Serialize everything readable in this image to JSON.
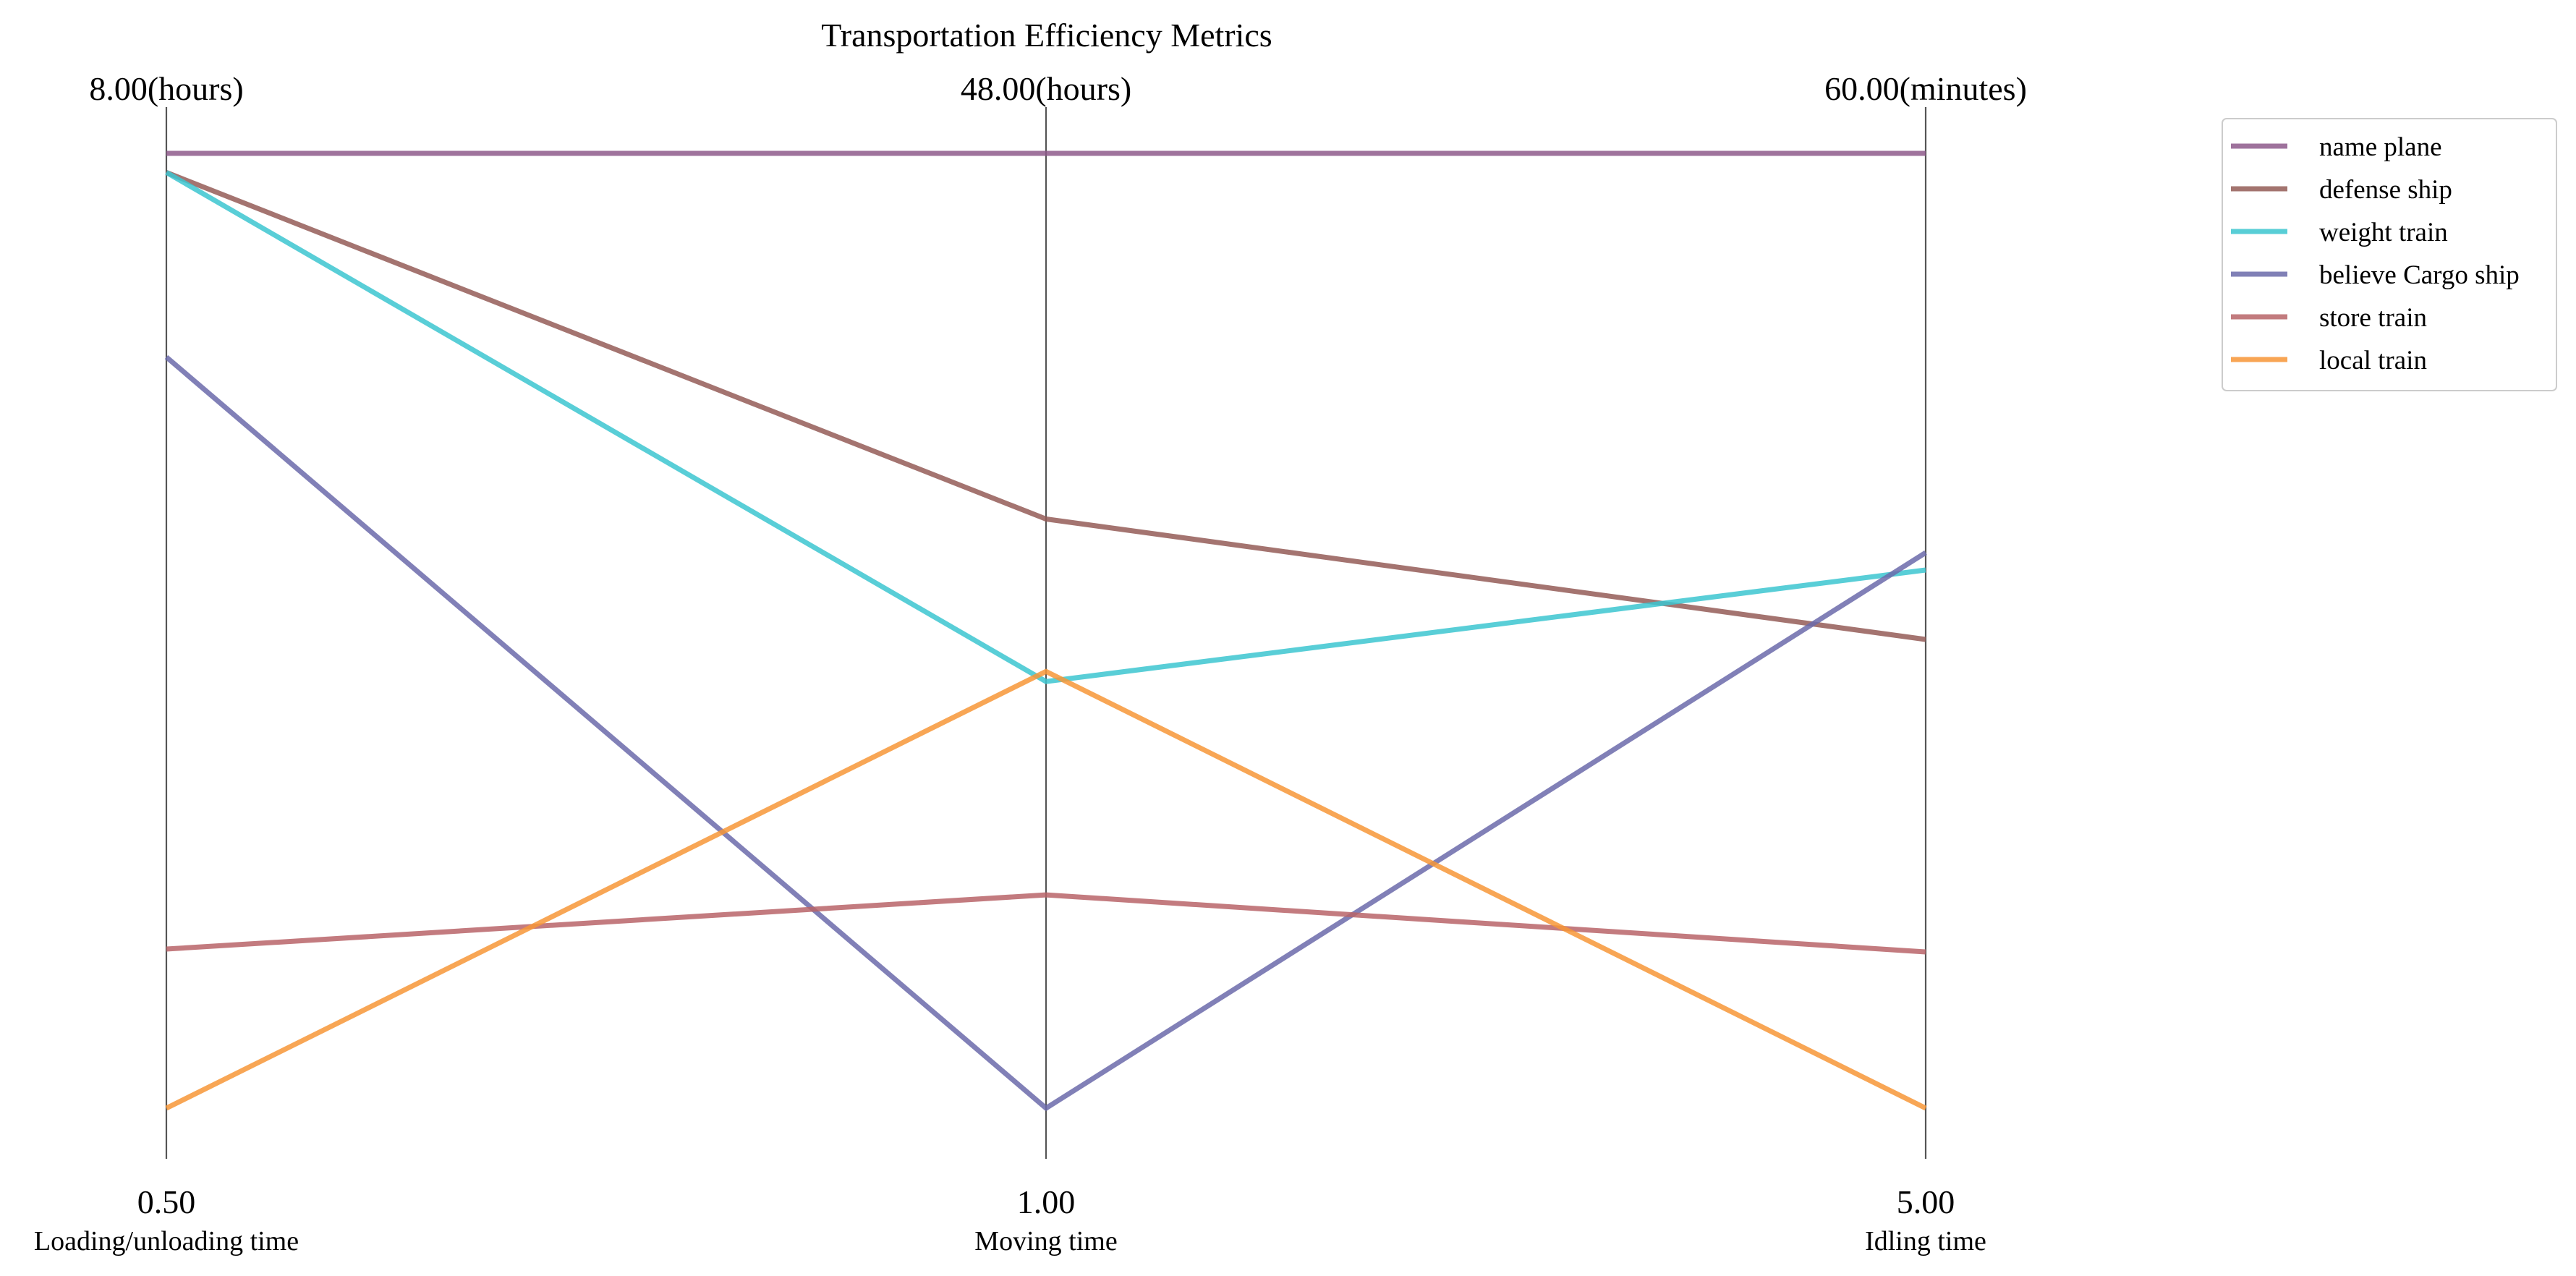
{
  "chart_data": {
    "type": "parallel-coordinates",
    "title": "Transportation Efficiency Metrics",
    "axes": [
      {
        "name": "Loading/unloading time",
        "min_label": "0.50",
        "max_label": "8.00(hours)",
        "min": 0.5,
        "max": 8.0
      },
      {
        "name": "Moving time",
        "min_label": "1.00",
        "max_label": "48.00(hours)",
        "min": 1.0,
        "max": 48.0
      },
      {
        "name": "Idling time",
        "min_label": "5.00",
        "max_label": "60.00(minutes)",
        "min": 5.0,
        "max": 60.0
      }
    ],
    "series": [
      {
        "name": "name plane",
        "color": "#8e5a8b",
        "values": [
          8.0,
          48.0,
          60.0
        ]
      },
      {
        "name": "defense ship",
        "color": "#945c57",
        "values": [
          7.85,
          30.0,
          32.0
        ]
      },
      {
        "name": "weight train",
        "color": "#3cc6d0",
        "values": [
          7.85,
          22.0,
          36.0
        ]
      },
      {
        "name": "believe Cargo ship",
        "color": "#6b6aaa",
        "values": [
          6.4,
          1.0,
          37.0
        ]
      },
      {
        "name": "store train",
        "color": "#b86468",
        "values": [
          1.75,
          11.5,
          14.0
        ]
      },
      {
        "name": "local train",
        "color": "#f79637",
        "values": [
          0.5,
          22.5,
          5.0
        ]
      }
    ],
    "legend_position": "top-right",
    "grid": false
  }
}
